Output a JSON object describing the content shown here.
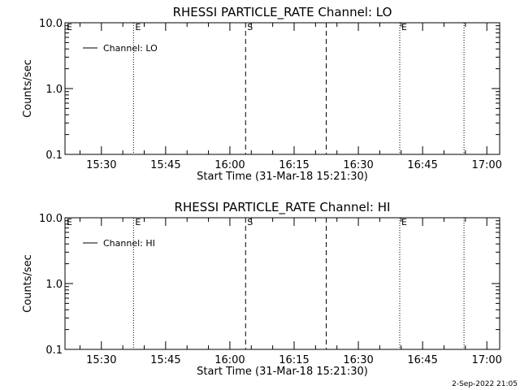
{
  "chart_data": [
    {
      "type": "line",
      "title": "RHESSI PARTICLE_RATE Channel: LO",
      "xlabel": "Start Time (31-Mar-18 15:21:30)",
      "ylabel": "Counts/sec",
      "y_scale": "log",
      "ylim": [
        0.1,
        10.0
      ],
      "xlim": [
        "15:21:30",
        "17:03:00"
      ],
      "x_ticks": [
        "15:30",
        "15:45",
        "16:00",
        "16:15",
        "16:30",
        "16:45",
        "17:00"
      ],
      "y_ticks": [
        "0.1",
        "1.0",
        "10.0"
      ],
      "series": [],
      "legend": {
        "placement": "top-left",
        "entries": [
          {
            "label": "Channel: LO",
            "style": "solid"
          }
        ]
      },
      "markers": [
        {
          "time": "15:37:30",
          "style": "dotted",
          "label": "E"
        },
        {
          "time": "16:03:40",
          "style": "dashed",
          "label": "S"
        },
        {
          "time": "16:22:30",
          "style": "dashed",
          "label": ""
        },
        {
          "time": "16:39:40",
          "style": "dotted",
          "label": "E"
        },
        {
          "time": "16:54:40",
          "style": "dotted",
          "label": ""
        }
      ],
      "corner_label": "E"
    },
    {
      "type": "line",
      "title": "RHESSI PARTICLE_RATE Channel: HI",
      "xlabel": "Start Time (31-Mar-18 15:21:30)",
      "ylabel": "Counts/sec",
      "y_scale": "log",
      "ylim": [
        0.1,
        10.0
      ],
      "xlim": [
        "15:21:30",
        "17:03:00"
      ],
      "x_ticks": [
        "15:30",
        "15:45",
        "16:00",
        "16:15",
        "16:30",
        "16:45",
        "17:00"
      ],
      "y_ticks": [
        "0.1",
        "1.0",
        "10.0"
      ],
      "series": [],
      "legend": {
        "placement": "top-left",
        "entries": [
          {
            "label": "Channel: HI",
            "style": "solid"
          }
        ]
      },
      "markers": [
        {
          "time": "15:37:30",
          "style": "dotted",
          "label": "E"
        },
        {
          "time": "16:03:40",
          "style": "dashed",
          "label": "S"
        },
        {
          "time": "16:22:30",
          "style": "dashed",
          "label": ""
        },
        {
          "time": "16:39:40",
          "style": "dotted",
          "label": "E"
        },
        {
          "time": "16:54:40",
          "style": "dotted",
          "label": ""
        }
      ],
      "corner_label": "E"
    }
  ],
  "footer": {
    "timestamp": "2-Sep-2022 21:05"
  },
  "colors": {
    "background": "#ffffff",
    "foreground": "#000000"
  }
}
